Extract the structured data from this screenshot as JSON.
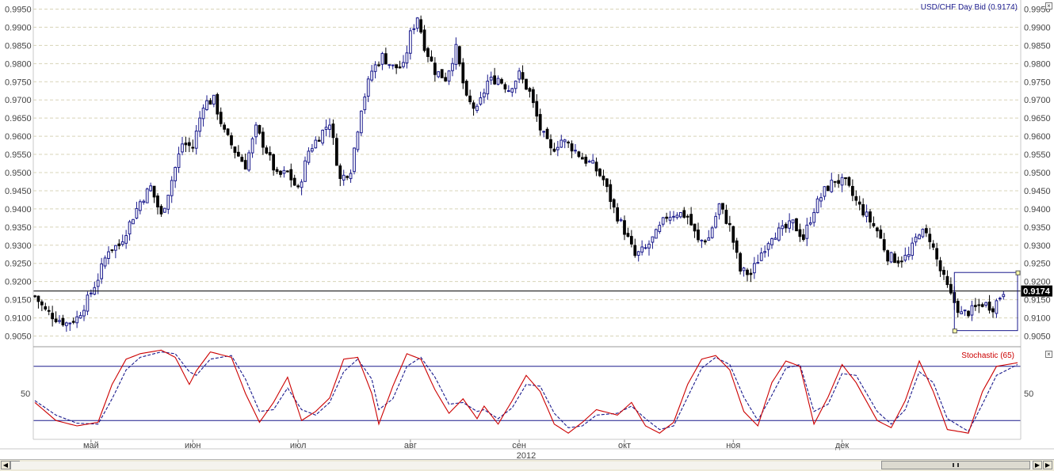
{
  "title": "USD/CHF Day Bid (0.9174)",
  "stoch_title": "Stochastic (65)",
  "last_price_label": "0.9174",
  "year_label": "2012",
  "colors": {
    "up": "#1a1a8c",
    "down": "#000000",
    "grid": "#d8d4b8",
    "stoch_k": "#cc0000",
    "stoch_d": "#1a1a8c",
    "bands": "#1a1a8c",
    "last_label_bg": "#000000"
  },
  "chart_data": [
    {
      "type": "candlestick",
      "title": "USD/CHF Day Bid (0.9174)",
      "x_month_labels": [
        {
          "label": "май",
          "index": 16
        },
        {
          "label": "июн",
          "index": 45
        },
        {
          "label": "июл",
          "index": 75
        },
        {
          "label": "авг",
          "index": 107
        },
        {
          "label": "сен",
          "index": 138
        },
        {
          "label": "окт",
          "index": 168
        },
        {
          "label": "ноя",
          "index": 199
        },
        {
          "label": "дек",
          "index": 230
        }
      ],
      "y_ticks": [
        "0.9950",
        "0.9900",
        "0.9850",
        "0.9800",
        "0.9750",
        "0.9700",
        "0.9650",
        "0.9600",
        "0.9550",
        "0.9500",
        "0.9450",
        "0.9400",
        "0.9350",
        "0.9300",
        "0.9250",
        "0.9200",
        "0.9150",
        "0.9100",
        "0.9050"
      ],
      "ylim": [
        0.9025,
        0.9975
      ],
      "last_price": 0.9174,
      "close_path": [
        [
          0,
          0.916
        ],
        [
          3,
          0.912
        ],
        [
          6,
          0.91
        ],
        [
          9,
          0.9085
        ],
        [
          12,
          0.91
        ],
        [
          15,
          0.915
        ],
        [
          18,
          0.921
        ],
        [
          21,
          0.929
        ],
        [
          24,
          0.93
        ],
        [
          27,
          0.936
        ],
        [
          30,
          0.942
        ],
        [
          33,
          0.946
        ],
        [
          36,
          0.938
        ],
        [
          39,
          0.948
        ],
        [
          42,
          0.958
        ],
        [
          45,
          0.957
        ],
        [
          48,
          0.969
        ],
        [
          51,
          0.97
        ],
        [
          54,
          0.961
        ],
        [
          57,
          0.956
        ],
        [
          60,
          0.952
        ],
        [
          63,
          0.962
        ],
        [
          66,
          0.956
        ],
        [
          69,
          0.949
        ],
        [
          72,
          0.95
        ],
        [
          75,
          0.945
        ],
        [
          78,
          0.956
        ],
        [
          81,
          0.96
        ],
        [
          84,
          0.964
        ],
        [
          87,
          0.948
        ],
        [
          90,
          0.951
        ],
        [
          93,
          0.968
        ],
        [
          96,
          0.978
        ],
        [
          99,
          0.982
        ],
        [
          102,
          0.979
        ],
        [
          105,
          0.979
        ],
        [
          107,
          0.988
        ],
        [
          109,
          0.993
        ],
        [
          111,
          0.985
        ],
        [
          114,
          0.978
        ],
        [
          117,
          0.976
        ],
        [
          120,
          0.984
        ],
        [
          123,
          0.97
        ],
        [
          126,
          0.967
        ],
        [
          129,
          0.975
        ],
        [
          132,
          0.976
        ],
        [
          135,
          0.973
        ],
        [
          138,
          0.977
        ],
        [
          141,
          0.972
        ],
        [
          144,
          0.962
        ],
        [
          147,
          0.956
        ],
        [
          150,
          0.959
        ],
        [
          153,
          0.957
        ],
        [
          156,
          0.954
        ],
        [
          159,
          0.952
        ],
        [
          162,
          0.948
        ],
        [
          165,
          0.94
        ],
        [
          168,
          0.934
        ],
        [
          171,
          0.927
        ],
        [
          174,
          0.929
        ],
        [
          177,
          0.933
        ],
        [
          180,
          0.938
        ],
        [
          183,
          0.939
        ],
        [
          186,
          0.938
        ],
        [
          189,
          0.931
        ],
        [
          192,
          0.932
        ],
        [
          195,
          0.941
        ],
        [
          198,
          0.935
        ],
        [
          201,
          0.923
        ],
        [
          204,
          0.922
        ],
        [
          207,
          0.928
        ],
        [
          210,
          0.933
        ],
        [
          213,
          0.934
        ],
        [
          216,
          0.936
        ],
        [
          219,
          0.932
        ],
        [
          222,
          0.94
        ],
        [
          225,
          0.945
        ],
        [
          228,
          0.948
        ],
        [
          231,
          0.947
        ],
        [
          234,
          0.942
        ],
        [
          237,
          0.938
        ],
        [
          240,
          0.934
        ],
        [
          243,
          0.927
        ],
        [
          246,
          0.926
        ],
        [
          249,
          0.927
        ],
        [
          252,
          0.934
        ],
        [
          255,
          0.932
        ],
        [
          258,
          0.923
        ],
        [
          261,
          0.916
        ],
        [
          264,
          0.911
        ],
        [
          267,
          0.912
        ],
        [
          270,
          0.914
        ],
        [
          273,
          0.913
        ],
        [
          276,
          0.9174
        ]
      ],
      "highlight_box": {
        "price_top": 0.9225,
        "price_bottom": 0.9065,
        "from_index": 262,
        "to_index": 280
      }
    },
    {
      "type": "line",
      "title": "Stochastic (65)",
      "y_ticks": [
        "50"
      ],
      "ylim": [
        0,
        100
      ],
      "bands": [
        80,
        20
      ],
      "k_path": [
        [
          0,
          40
        ],
        [
          6,
          20
        ],
        [
          12,
          14
        ],
        [
          18,
          18
        ],
        [
          22,
          60
        ],
        [
          26,
          88
        ],
        [
          30,
          94
        ],
        [
          36,
          98
        ],
        [
          40,
          90
        ],
        [
          44,
          60
        ],
        [
          46,
          75
        ],
        [
          50,
          96
        ],
        [
          56,
          90
        ],
        [
          60,
          50
        ],
        [
          64,
          18
        ],
        [
          68,
          40
        ],
        [
          72,
          68
        ],
        [
          76,
          20
        ],
        [
          80,
          30
        ],
        [
          84,
          45
        ],
        [
          88,
          88
        ],
        [
          92,
          90
        ],
        [
          96,
          50
        ],
        [
          98,
          16
        ],
        [
          102,
          58
        ],
        [
          106,
          94
        ],
        [
          110,
          88
        ],
        [
          114,
          54
        ],
        [
          118,
          28
        ],
        [
          122,
          44
        ],
        [
          126,
          22
        ],
        [
          128,
          36
        ],
        [
          132,
          16
        ],
        [
          136,
          42
        ],
        [
          140,
          70
        ],
        [
          144,
          52
        ],
        [
          148,
          16
        ],
        [
          152,
          6
        ],
        [
          156,
          18
        ],
        [
          160,
          32
        ],
        [
          166,
          26
        ],
        [
          170,
          40
        ],
        [
          174,
          14
        ],
        [
          178,
          6
        ],
        [
          182,
          18
        ],
        [
          186,
          60
        ],
        [
          190,
          88
        ],
        [
          194,
          92
        ],
        [
          198,
          76
        ],
        [
          202,
          30
        ],
        [
          206,
          14
        ],
        [
          210,
          62
        ],
        [
          214,
          86
        ],
        [
          218,
          80
        ],
        [
          222,
          16
        ],
        [
          226,
          46
        ],
        [
          230,
          82
        ],
        [
          234,
          62
        ],
        [
          240,
          20
        ],
        [
          244,
          12
        ],
        [
          248,
          42
        ],
        [
          252,
          86
        ],
        [
          256,
          52
        ],
        [
          260,
          10
        ],
        [
          266,
          6
        ],
        [
          270,
          52
        ],
        [
          274,
          80
        ],
        [
          280,
          84
        ]
      ],
      "d_path": [
        [
          0,
          42
        ],
        [
          6,
          26
        ],
        [
          12,
          17
        ],
        [
          18,
          16
        ],
        [
          22,
          44
        ],
        [
          26,
          76
        ],
        [
          30,
          90
        ],
        [
          36,
          96
        ],
        [
          40,
          94
        ],
        [
          44,
          74
        ],
        [
          46,
          70
        ],
        [
          50,
          88
        ],
        [
          56,
          92
        ],
        [
          60,
          66
        ],
        [
          64,
          30
        ],
        [
          68,
          32
        ],
        [
          72,
          56
        ],
        [
          76,
          32
        ],
        [
          80,
          26
        ],
        [
          84,
          40
        ],
        [
          88,
          74
        ],
        [
          92,
          88
        ],
        [
          96,
          66
        ],
        [
          98,
          32
        ],
        [
          102,
          44
        ],
        [
          106,
          80
        ],
        [
          110,
          90
        ],
        [
          114,
          68
        ],
        [
          118,
          38
        ],
        [
          122,
          40
        ],
        [
          126,
          30
        ],
        [
          128,
          32
        ],
        [
          132,
          22
        ],
        [
          136,
          34
        ],
        [
          140,
          60
        ],
        [
          144,
          58
        ],
        [
          148,
          28
        ],
        [
          152,
          12
        ],
        [
          156,
          14
        ],
        [
          160,
          26
        ],
        [
          166,
          28
        ],
        [
          170,
          36
        ],
        [
          174,
          22
        ],
        [
          178,
          10
        ],
        [
          182,
          14
        ],
        [
          186,
          46
        ],
        [
          190,
          78
        ],
        [
          194,
          90
        ],
        [
          198,
          82
        ],
        [
          202,
          46
        ],
        [
          206,
          20
        ],
        [
          210,
          48
        ],
        [
          214,
          78
        ],
        [
          218,
          82
        ],
        [
          222,
          30
        ],
        [
          226,
          38
        ],
        [
          230,
          72
        ],
        [
          234,
          70
        ],
        [
          240,
          30
        ],
        [
          244,
          16
        ],
        [
          248,
          32
        ],
        [
          252,
          74
        ],
        [
          256,
          62
        ],
        [
          260,
          22
        ],
        [
          266,
          8
        ],
        [
          270,
          38
        ],
        [
          274,
          70
        ],
        [
          280,
          82
        ]
      ]
    }
  ]
}
